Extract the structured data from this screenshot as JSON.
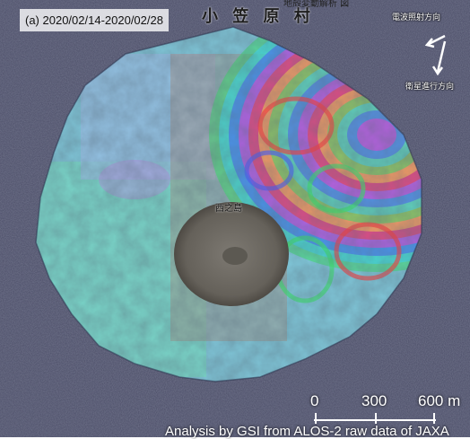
{
  "figure": {
    "period_label": "(a) 2020/02/14-2020/02/28",
    "place_name": "小 笠 原 村",
    "top_caption": "地殻変動解析 図",
    "range_direction": "電波照射方向",
    "track_direction": "衛星進行方向",
    "summit_label": "西之島",
    "scale": {
      "labels": [
        "0",
        "300",
        "600 m"
      ]
    },
    "credit": "Analysis by GSI from ALOS-2 raw data of JAXA"
  },
  "colors": {
    "fringe_cycle": [
      "#ff3b3b",
      "#ffd84a",
      "#3be36a",
      "#3ad9ff",
      "#4a5bff",
      "#ff3bd9"
    ],
    "island_base": "#7fc6d8",
    "crater": "#6e6a62",
    "sea_noise": "#4d4f6b"
  }
}
